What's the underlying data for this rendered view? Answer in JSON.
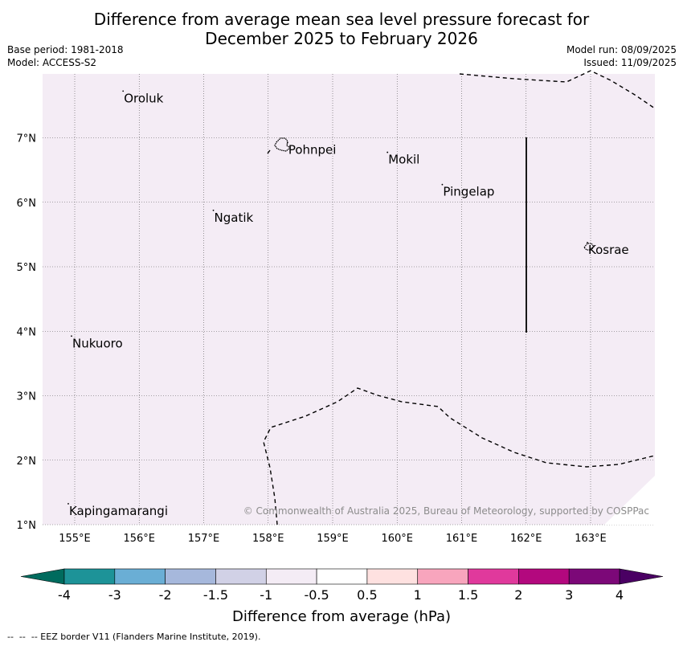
{
  "title": {
    "line1": "Difference from average mean sea level pressure forecast for",
    "line2": "December 2025 to February 2026"
  },
  "meta_left": {
    "base_period": "Base period: 1981-2018",
    "model": "Model: ACCESS-S2"
  },
  "meta_right": {
    "model_run": "Model run: 08/09/2025",
    "issued": "Issued: 11/09/2025"
  },
  "map": {
    "background_color": "#f4ecf5",
    "lon_ticks": [
      "155°E",
      "156°E",
      "157°E",
      "158°E",
      "159°E",
      "160°E",
      "161°E",
      "162°E",
      "163°E"
    ],
    "lat_ticks": [
      "1°N",
      "2°N",
      "3°N",
      "4°N",
      "5°N",
      "6°N",
      "7°N"
    ],
    "places": [
      {
        "name": "Oroluk",
        "lon": 155.75,
        "lat": 7.65
      },
      {
        "name": "Pohnpei",
        "lon": 158.3,
        "lat": 6.85
      },
      {
        "name": "Mokil",
        "lon": 159.85,
        "lat": 6.7
      },
      {
        "name": "Pingelap",
        "lon": 160.7,
        "lat": 6.2
      },
      {
        "name": "Ngatik",
        "lon": 157.15,
        "lat": 5.8
      },
      {
        "name": "Kosrae",
        "lon": 162.95,
        "lat": 5.3
      },
      {
        "name": "Nukuoro",
        "lon": 154.95,
        "lat": 3.85
      },
      {
        "name": "Kapingamarangi",
        "lon": 154.9,
        "lat": 1.25
      }
    ],
    "copyright": "© Commonwealth of Australia 2025, Bureau of Meteorology, supported by COSPPac"
  },
  "colorbar": {
    "label": "Difference from average (hPa)",
    "tick_labels": [
      "-4",
      "-3",
      "-2",
      "-1.5",
      "-1",
      "-0.5",
      "0.5",
      "1",
      "1.5",
      "2",
      "3",
      "4"
    ],
    "low_extend_color": "#006b5e",
    "high_extend_color": "#4a0063",
    "colors": [
      "#1d9398",
      "#6aaed5",
      "#a6b8dc",
      "#d1d1e6",
      "#f4ecf5",
      "#ffffff",
      "#fee1e0",
      "#f8a5bd",
      "#e0399c",
      "#b3087e",
      "#7c0878"
    ]
  },
  "footer": "--  --  -- EEZ border V11 (Flanders Marine Institute, 2019)."
}
